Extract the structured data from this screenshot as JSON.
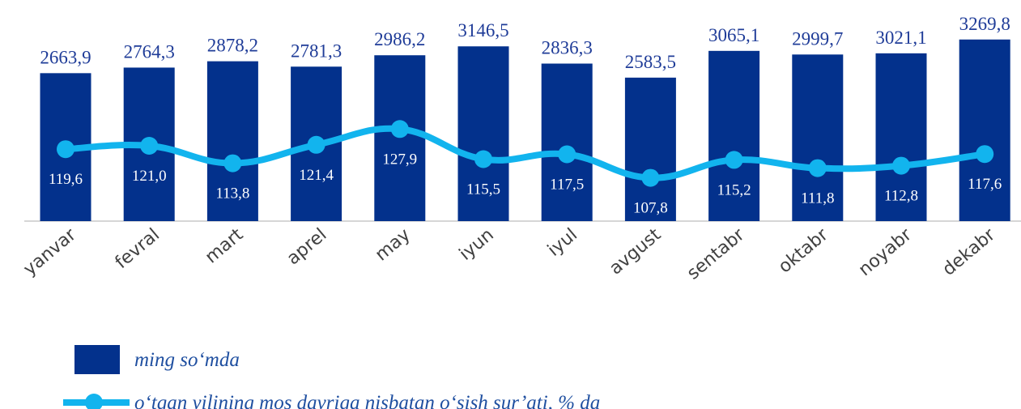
{
  "chart_data": {
    "type": "bar",
    "categories": [
      "yanvar",
      "fevral",
      "mart",
      "aprel",
      "may",
      "iyun",
      "iyul",
      "avgust",
      "sentabr",
      "oktabr",
      "noyabr",
      "dekabr"
    ],
    "series": [
      {
        "name": "ming so‘mda",
        "type": "bar",
        "color": "#03318c",
        "values": [
          2663.9,
          2764.3,
          2878.2,
          2781.3,
          2986.2,
          3146.5,
          2836.3,
          2583.5,
          3065.1,
          2999.7,
          3021.1,
          3269.8
        ],
        "value_labels": [
          "2663,9",
          "2764,3",
          "2878,2",
          "2781,3",
          "2986,2",
          "3146,5",
          "2836,3",
          "2583,5",
          "3065,1",
          "2999,7",
          "3021,1",
          "3269,8"
        ]
      },
      {
        "name": "o‘tgan yilining mos davriga nisbatan o‘sish sur’ati, % da",
        "type": "line",
        "axis": "y2",
        "color": "#12b4ee",
        "values": [
          119.6,
          121.0,
          113.8,
          121.4,
          127.9,
          115.5,
          117.5,
          107.8,
          115.2,
          111.8,
          112.8,
          117.6
        ],
        "value_labels": [
          "119,6",
          "121,0",
          "113,8",
          "121,4",
          "127,9",
          "115,5",
          "117,5",
          "107,8",
          "115,2",
          "111,8",
          "112,8",
          "117,6"
        ]
      }
    ],
    "ylim": [
      0,
      3500
    ],
    "y2lim": [
      90,
      170
    ]
  }
}
